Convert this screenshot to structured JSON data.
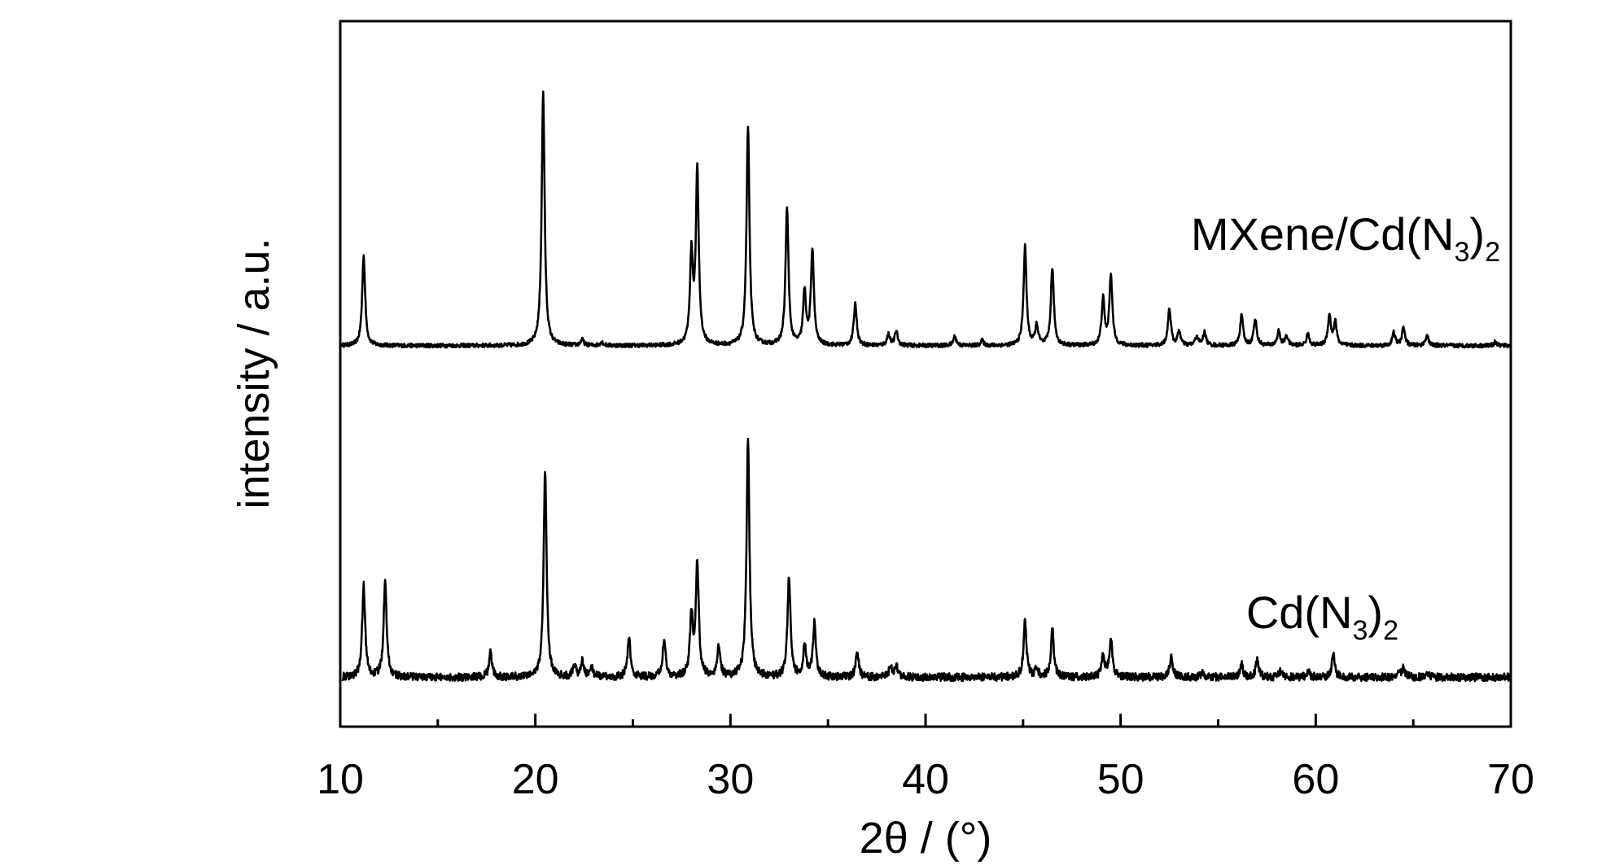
{
  "chart_data": {
    "type": "line",
    "xlabel": "2θ / (°)",
    "ylabel": "intensity / a.u.",
    "xlim": [
      10,
      70
    ],
    "ylim": [
      0,
      100
    ],
    "x_ticks": [
      "10",
      "20",
      "30",
      "40",
      "50",
      "60",
      "70"
    ],
    "grid": false,
    "legend": "none",
    "y_tick_labels": false,
    "series": [
      {
        "name": "MXene/Cd(N3)2",
        "label_text": "MXene/Cd(N",
        "label_sub": "3",
        "label_close": ")",
        "label_sub2": "2",
        "color": "#000000",
        "baseline": 54,
        "peaks": [
          [
            11.2,
            12.8
          ],
          [
            20.4,
            36.0
          ],
          [
            22.4,
            0.8
          ],
          [
            23.4,
            0.5
          ],
          [
            28.0,
            12.5
          ],
          [
            28.3,
            24.5
          ],
          [
            30.9,
            30.8
          ],
          [
            32.9,
            19.5
          ],
          [
            33.8,
            7.5
          ],
          [
            34.2,
            13.5
          ],
          [
            36.4,
            6.0
          ],
          [
            38.1,
            1.6
          ],
          [
            38.5,
            2.0
          ],
          [
            41.5,
            1.3
          ],
          [
            42.9,
            0.7
          ],
          [
            45.1,
            14.0
          ],
          [
            45.7,
            2.8
          ],
          [
            46.5,
            11.0
          ],
          [
            49.1,
            6.5
          ],
          [
            49.5,
            10.0
          ],
          [
            52.5,
            5.3
          ],
          [
            53.0,
            2.0
          ],
          [
            53.9,
            1.3
          ],
          [
            54.3,
            1.9
          ],
          [
            56.2,
            4.3
          ],
          [
            56.9,
            3.8
          ],
          [
            58.1,
            2.0
          ],
          [
            58.5,
            1.4
          ],
          [
            59.6,
            1.6
          ],
          [
            60.7,
            4.3
          ],
          [
            61.0,
            3.3
          ],
          [
            64.0,
            1.8
          ],
          [
            64.5,
            2.6
          ],
          [
            65.7,
            1.5
          ],
          [
            69.2,
            0.5
          ]
        ]
      },
      {
        "name": "Cd(N3)2",
        "label_text": "Cd(N",
        "label_sub": "3",
        "label_close": ")",
        "label_sub2": "2",
        "color": "#000000",
        "baseline": 7,
        "peaks": [
          [
            11.2,
            13.0
          ],
          [
            12.3,
            14.0
          ],
          [
            17.7,
            3.5
          ],
          [
            20.5,
            29.5
          ],
          [
            22.0,
            1.5
          ],
          [
            22.4,
            2.2
          ],
          [
            22.9,
            1.3
          ],
          [
            24.8,
            5.5
          ],
          [
            26.6,
            5.5
          ],
          [
            28.0,
            8.5
          ],
          [
            28.3,
            16.0
          ],
          [
            29.4,
            4.5
          ],
          [
            30.9,
            33.5
          ],
          [
            33.0,
            14.2
          ],
          [
            33.8,
            4.5
          ],
          [
            34.3,
            7.5
          ],
          [
            36.5,
            3.5
          ],
          [
            38.2,
            1.5
          ],
          [
            38.5,
            1.7
          ],
          [
            45.1,
            8.0
          ],
          [
            45.7,
            1.3
          ],
          [
            46.5,
            6.8
          ],
          [
            49.1,
            3.3
          ],
          [
            49.5,
            5.5
          ],
          [
            52.6,
            3.0
          ],
          [
            54.2,
            0.8
          ],
          [
            56.2,
            1.8
          ],
          [
            57.0,
            2.6
          ],
          [
            58.2,
            0.8
          ],
          [
            59.6,
            0.8
          ],
          [
            60.9,
            3.2
          ],
          [
            64.2,
            0.8
          ],
          [
            64.5,
            1.3
          ],
          [
            65.7,
            0.8
          ]
        ]
      }
    ]
  }
}
